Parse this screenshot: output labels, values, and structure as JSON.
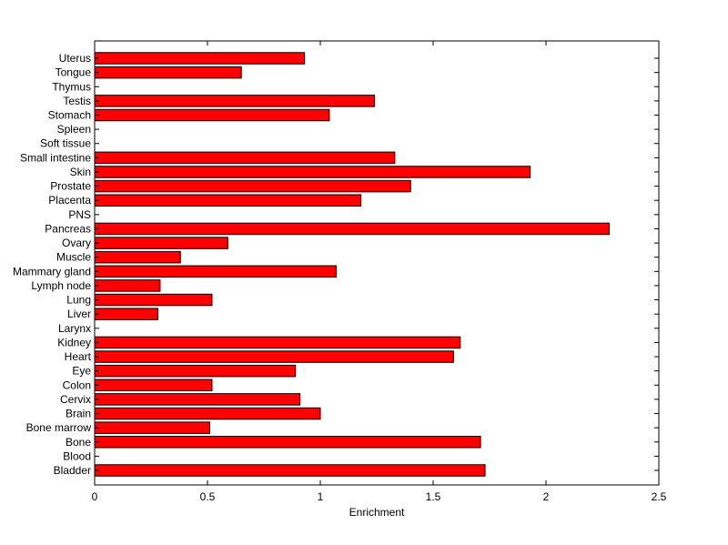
{
  "chart_data": {
    "type": "bar",
    "orientation": "horizontal",
    "xlabel": "Enrichment",
    "xlim": [
      0,
      2.5
    ],
    "xticks": [
      0,
      0.5,
      1,
      1.5,
      2,
      2.5
    ],
    "xtick_labels": [
      "0",
      "0.5",
      "1",
      "1.5",
      "2",
      "2.5"
    ],
    "bar_color": "#ff0000",
    "grid": false,
    "categories": [
      "Bladder",
      "Blood",
      "Bone",
      "Bone marrow",
      "Brain",
      "Cervix",
      "Colon",
      "Eye",
      "Heart",
      "Kidney",
      "Larynx",
      "Liver",
      "Lung",
      "Lymph node",
      "Mammary gland",
      "Muscle",
      "Ovary",
      "Pancreas",
      "PNS",
      "Placenta",
      "Prostate",
      "Skin",
      "Small intestine",
      "Soft tissue",
      "Spleen",
      "Stomach",
      "Testis",
      "Thymus",
      "Tongue",
      "Uterus"
    ],
    "values": [
      1.73,
      0,
      1.71,
      0.51,
      1.0,
      0.91,
      0.52,
      0.89,
      1.59,
      1.62,
      0,
      0.28,
      0.52,
      0.29,
      1.07,
      0.38,
      0.59,
      2.28,
      0,
      1.18,
      1.4,
      1.93,
      1.33,
      0,
      0,
      1.04,
      1.24,
      0,
      0.65,
      0.93
    ]
  }
}
